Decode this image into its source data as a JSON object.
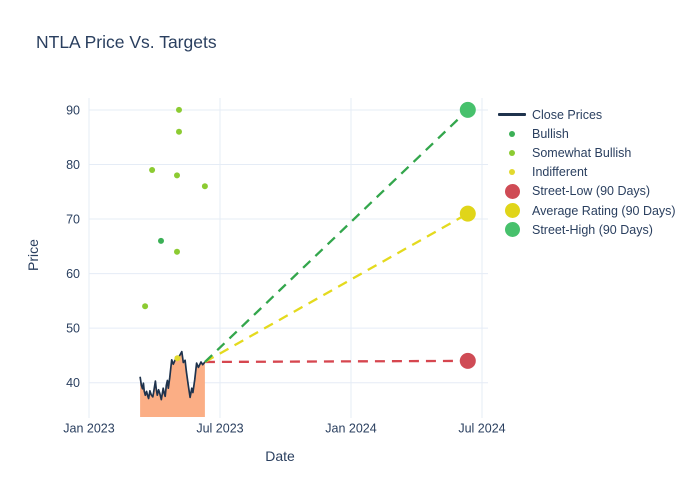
{
  "title": "NTLA Price Vs. Targets",
  "legend": {
    "items": [
      {
        "label": "Close Prices",
        "swatch": "line",
        "color": "#1f334d",
        "slug": "close-prices"
      },
      {
        "label": "Bullish",
        "swatch": "dot",
        "color": "#3bb056",
        "slug": "bullish"
      },
      {
        "label": "Somewhat Bullish",
        "swatch": "dot",
        "color": "#8ccb32",
        "slug": "somewhat-bullish"
      },
      {
        "label": "Indifferent",
        "swatch": "dot",
        "color": "#e2d92e",
        "slug": "indifferent"
      },
      {
        "label": "Street-Low (90 Days)",
        "swatch": "circle",
        "color": "#cf4b55",
        "slug": "street-low"
      },
      {
        "label": "Average Rating (90 Days)",
        "swatch": "circle",
        "color": "#e0d519",
        "slug": "average-rating"
      },
      {
        "label": "Street-High (90 Days)",
        "swatch": "circle",
        "color": "#47c16c",
        "slug": "street-high"
      }
    ]
  },
  "chart_data": {
    "type": "line",
    "title": "NTLA Price Vs. Targets",
    "xlabel": "Date",
    "ylabel": "Price",
    "grid_color": "#e5ecf6",
    "text_color": "#2a3f5f",
    "x_axis": {
      "tick_labels": [
        "Jan 2023",
        "Jul 2023",
        "Jan 2024",
        "Jul 2024"
      ],
      "tick_positions_months": [
        0,
        6,
        12,
        18
      ],
      "range_months": [
        0,
        18.3
      ]
    },
    "y_axis": {
      "ticks": [
        40,
        50,
        60,
        70,
        80,
        90
      ],
      "range": [
        33.5,
        92.2
      ]
    },
    "close_prices": {
      "name": "Close Prices",
      "line_color": "#1f334d",
      "fill_color": "#fbae85",
      "points_months_price": [
        [
          2.34,
          41.1
        ],
        [
          2.4,
          39.5
        ],
        [
          2.45,
          38.9
        ],
        [
          2.49,
          39.9
        ],
        [
          2.53,
          38.5
        ],
        [
          2.58,
          37.7
        ],
        [
          2.64,
          38.4
        ],
        [
          2.69,
          37.6
        ],
        [
          2.73,
          37.1
        ],
        [
          2.79,
          38.5
        ],
        [
          2.85,
          37.8
        ],
        [
          2.92,
          37.4
        ],
        [
          2.96,
          38.2
        ],
        [
          3.04,
          40.3
        ],
        [
          3.08,
          38.9
        ],
        [
          3.13,
          37.7
        ],
        [
          3.19,
          38.7
        ],
        [
          3.24,
          38.1
        ],
        [
          3.31,
          36.9
        ],
        [
          3.36,
          38.1
        ],
        [
          3.4,
          39.0
        ],
        [
          3.45,
          38.0
        ],
        [
          3.49,
          37.5
        ],
        [
          3.54,
          39.5
        ],
        [
          3.59,
          40.4
        ],
        [
          3.63,
          39.0
        ],
        [
          3.7,
          41.0
        ],
        [
          3.79,
          44.2
        ],
        [
          3.86,
          43.4
        ],
        [
          3.97,
          44.4
        ],
        [
          4.05,
          44.5
        ],
        [
          4.14,
          44.9
        ],
        [
          4.25,
          45.7
        ],
        [
          4.32,
          43.7
        ],
        [
          4.4,
          44.1
        ],
        [
          4.46,
          42.0
        ],
        [
          4.55,
          39.5
        ],
        [
          4.63,
          37.3
        ],
        [
          4.71,
          39.0
        ],
        [
          4.76,
          38.2
        ],
        [
          4.84,
          40.5
        ],
        [
          4.93,
          43.6
        ],
        [
          5.01,
          42.8
        ],
        [
          5.13,
          43.8
        ],
        [
          5.21,
          43.3
        ],
        [
          5.31,
          43.8
        ]
      ]
    },
    "rating_series": [
      {
        "name": "Bullish",
        "slug": "bullish",
        "color": "#3bb056",
        "points_months_price": [
          [
            3.3,
            66
          ]
        ]
      },
      {
        "name": "Somewhat Bullish",
        "slug": "somewhat-bullish",
        "color": "#8ccb32",
        "points_months_price": [
          [
            4.12,
            90
          ],
          [
            4.12,
            86
          ],
          [
            2.89,
            79
          ],
          [
            4.03,
            78
          ],
          [
            5.31,
            76
          ],
          [
            4.03,
            64
          ],
          [
            2.57,
            54
          ]
        ]
      },
      {
        "name": "Indifferent",
        "slug": "indifferent",
        "color": "#e2d92e",
        "points_months_price": [
          [
            4.05,
            44.5
          ]
        ]
      }
    ],
    "targets": [
      {
        "name": "Street-Low (90 Days)",
        "slug": "street-low",
        "marker_color": "#cf4b55",
        "line_color": "#d6464f",
        "value": 44,
        "start_month": 5.31,
        "start_price": 43.8,
        "end_month": 17.35
      },
      {
        "name": "Average Rating (90 Days)",
        "slug": "average-rating",
        "marker_color": "#e0d519",
        "line_color": "#e4da1e",
        "value": 71,
        "start_month": 5.31,
        "start_price": 43.8,
        "end_month": 17.35
      },
      {
        "name": "Street-High (90 Days)",
        "slug": "street-high",
        "marker_color": "#47c16c",
        "line_color": "#33a64c",
        "value": 90,
        "start_month": 5.31,
        "start_price": 43.8,
        "end_month": 17.35
      }
    ]
  }
}
